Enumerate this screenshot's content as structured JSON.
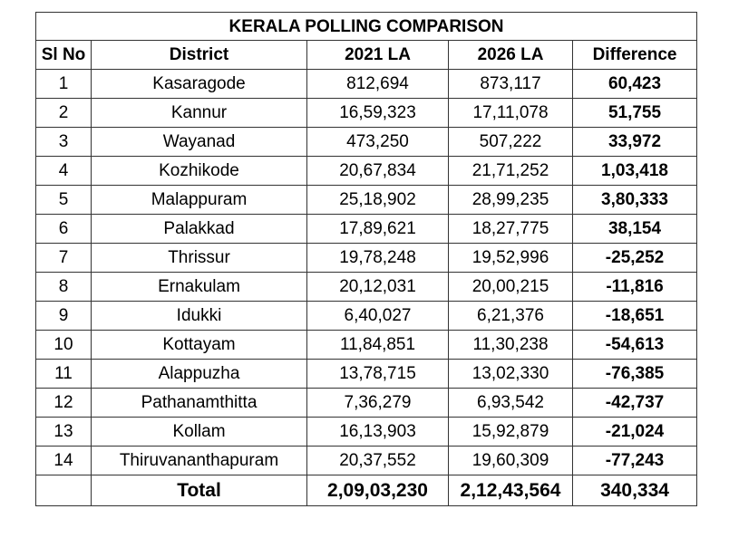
{
  "title": "KERALA POLLING COMPARISON",
  "columns": [
    "Sl No",
    "District",
    "2021 LA",
    "2026 LA",
    "Difference"
  ],
  "rows": [
    {
      "sl": "1",
      "district": "Kasaragode",
      "la2021": "812,694",
      "la2026": "873,117",
      "difference": "60,423"
    },
    {
      "sl": "2",
      "district": "Kannur",
      "la2021": "16,59,323",
      "la2026": "17,11,078",
      "difference": "51,755"
    },
    {
      "sl": "3",
      "district": "Wayanad",
      "la2021": "473,250",
      "la2026": "507,222",
      "difference": "33,972"
    },
    {
      "sl": "4",
      "district": "Kozhikode",
      "la2021": "20,67,834",
      "la2026": "21,71,252",
      "difference": "1,03,418"
    },
    {
      "sl": "5",
      "district": "Malappuram",
      "la2021": "25,18,902",
      "la2026": "28,99,235",
      "difference": "3,80,333"
    },
    {
      "sl": "6",
      "district": "Palakkad",
      "la2021": "17,89,621",
      "la2026": "18,27,775",
      "difference": "38,154"
    },
    {
      "sl": "7",
      "district": "Thrissur",
      "la2021": "19,78,248",
      "la2026": "19,52,996",
      "difference": "-25,252"
    },
    {
      "sl": "8",
      "district": "Ernakulam",
      "la2021": "20,12,031",
      "la2026": "20,00,215",
      "difference": "-11,816"
    },
    {
      "sl": "9",
      "district": "Idukki",
      "la2021": "6,40,027",
      "la2026": "6,21,376",
      "difference": "-18,651"
    },
    {
      "sl": "10",
      "district": "Kottayam",
      "la2021": "11,84,851",
      "la2026": "11,30,238",
      "difference": "-54,613"
    },
    {
      "sl": "11",
      "district": "Alappuzha",
      "la2021": "13,78,715",
      "la2026": "13,02,330",
      "difference": "-76,385"
    },
    {
      "sl": "12",
      "district": "Pathanamthitta",
      "la2021": "7,36,279",
      "la2026": "6,93,542",
      "difference": "-42,737"
    },
    {
      "sl": "13",
      "district": "Kollam",
      "la2021": "16,13,903",
      "la2026": "15,92,879",
      "difference": "-21,024"
    },
    {
      "sl": "14",
      "district": "Thiruvananthapuram",
      "la2021": "20,37,552",
      "la2026": "19,60,309",
      "difference": "-77,243"
    }
  ],
  "total": {
    "label": "Total",
    "la2021": "2,09,03,230",
    "la2026": "2,12,43,564",
    "difference": "340,334"
  }
}
